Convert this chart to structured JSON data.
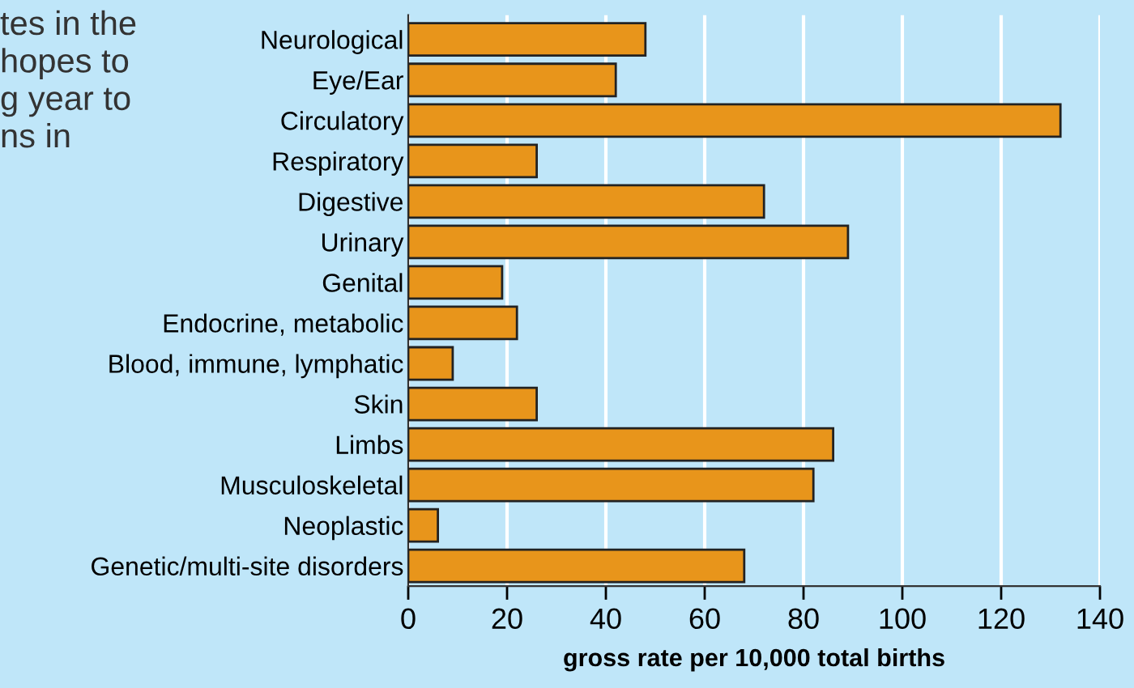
{
  "chart_data": {
    "type": "bar",
    "orientation": "horizontal",
    "categories": [
      "Neurological",
      "Eye/Ear",
      "Circulatory",
      "Respiratory",
      "Digestive",
      "Urinary",
      "Genital",
      "Endocrine, metabolic",
      "Blood, immune, lymphatic",
      "Skin",
      "Limbs",
      "Musculoskeletal",
      "Neoplastic",
      "Genetic/multi-site disorders"
    ],
    "values": [
      48,
      42,
      132,
      26,
      72,
      89,
      19,
      22,
      9,
      26,
      86,
      82,
      6,
      68
    ],
    "color": "#e8951b",
    "xlabel": "gross rate per 10,000 total births",
    "xlim": [
      0,
      140
    ],
    "xticks": [
      0,
      20,
      40,
      60,
      80,
      100,
      120,
      140
    ],
    "grid": "x",
    "legend": false,
    "annotations": [
      "tes in the\nhopes to\ng year to\nns in"
    ]
  }
}
